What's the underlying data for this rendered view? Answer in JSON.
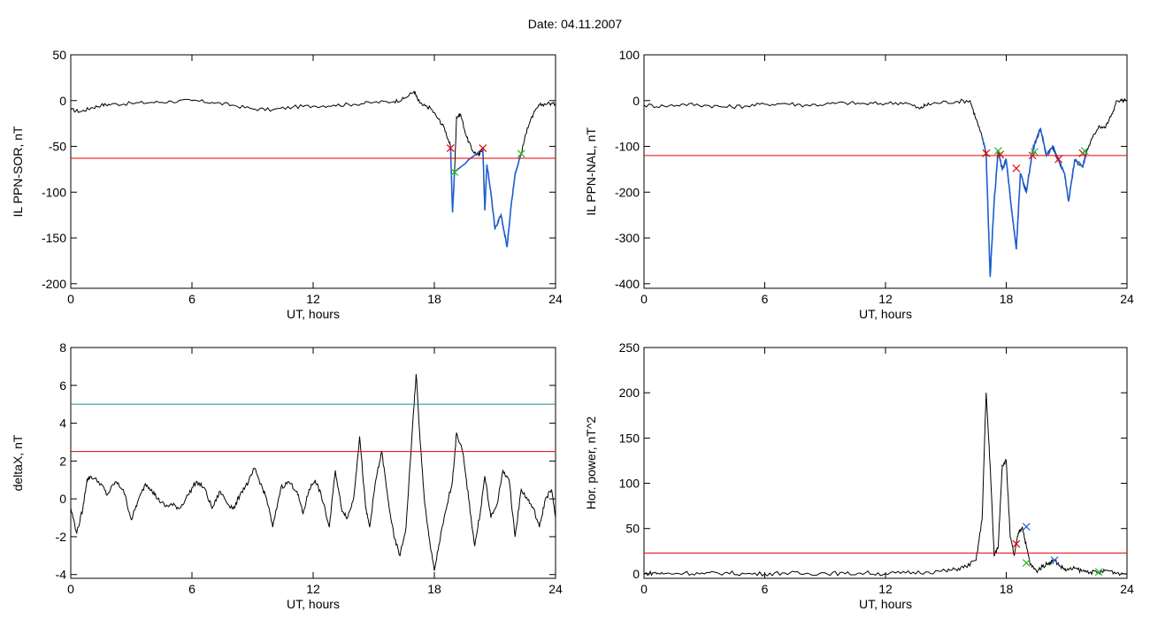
{
  "figure": {
    "title": "Date:  04.11.2007"
  },
  "colors": {
    "trace": "#000000",
    "highlight": "#1f5fd0",
    "threshold_red": "#e00000",
    "threshold_teal": "#1a8c8c",
    "marker_red": "#e00000",
    "marker_green": "#22bb22",
    "marker_blue": "#1f5fd0"
  },
  "chart_data": [
    {
      "id": "ppn-sor",
      "type": "line",
      "xlabel": "UT, hours",
      "ylabel": "IL PPN-SOR, nT",
      "xlim": [
        0,
        24
      ],
      "ylim": [
        -205,
        50
      ],
      "xticks": [
        0,
        6,
        12,
        18,
        24
      ],
      "yticks": [
        -200,
        -150,
        -100,
        -50,
        0,
        50
      ],
      "series": [
        {
          "x": [
            0,
            0.5,
            1,
            1.5,
            2,
            3,
            4,
            5,
            6,
            7,
            8,
            9,
            10,
            11,
            12,
            13,
            14,
            15,
            16,
            16.5,
            17,
            17.2,
            17.4,
            17.8,
            18.2,
            18.5,
            18.8,
            18.9,
            19.0,
            19.1,
            19.3,
            19.6,
            19.9,
            20.2,
            20.4,
            20.5,
            20.6,
            20.8,
            21.0,
            21.3,
            21.6,
            21.8,
            22.0,
            22.3,
            22.6,
            22.9,
            23.2,
            23.6,
            24
          ],
          "values": [
            -10,
            -12,
            -8,
            -5,
            -4,
            -3,
            -2,
            -1,
            0,
            -2,
            -5,
            -9,
            -10,
            -7,
            -6,
            -5,
            -4,
            -2,
            -1,
            2,
            10,
            0,
            -5,
            -8,
            -20,
            -30,
            -50,
            -122,
            -78,
            -18,
            -15,
            -40,
            -55,
            -60,
            -52,
            -120,
            -70,
            -100,
            -140,
            -125,
            -160,
            -115,
            -80,
            -58,
            -30,
            -15,
            -5,
            -3,
            -4
          ]
        },
        {
          "x": [
            18.8,
            18.9,
            19.0,
            20.4,
            20.5,
            20.6,
            20.8,
            21.0,
            21.3,
            21.6,
            21.8,
            22.0,
            22.3
          ],
          "values": [
            -50,
            -122,
            -78,
            -52,
            -120,
            -70,
            -100,
            -140,
            -125,
            -160,
            -115,
            -80,
            -58
          ]
        }
      ],
      "thresholds": [
        -63
      ],
      "markers": [
        {
          "x": 18.8,
          "y": -52,
          "color": "red"
        },
        {
          "x": 20.4,
          "y": -52,
          "color": "red"
        },
        {
          "x": 19.0,
          "y": -78,
          "color": "green"
        },
        {
          "x": 22.3,
          "y": -58,
          "color": "green"
        }
      ]
    },
    {
      "id": "ppn-nal",
      "type": "line",
      "xlabel": "UT, hours",
      "ylabel": "IL PPN-NAL, nT",
      "xlim": [
        0,
        24
      ],
      "ylim": [
        -410,
        100
      ],
      "xticks": [
        0,
        6,
        12,
        18,
        24
      ],
      "yticks": [
        -400,
        -300,
        -200,
        -100,
        0,
        100
      ],
      "series": [
        {
          "x": [
            0,
            1,
            2,
            3,
            4,
            5,
            6,
            7,
            8,
            9,
            10,
            11,
            12,
            13,
            13.7,
            14.0,
            14.5,
            15.5,
            16.2,
            16.5,
            16.8,
            17.0,
            17.2,
            17.4,
            17.6,
            17.8,
            18.0,
            18.3,
            18.5,
            18.7,
            19.0,
            19.3,
            19.5,
            19.7,
            20.0,
            20.3,
            20.6,
            20.9,
            21.1,
            21.4,
            21.8,
            22.0,
            22.3,
            22.6,
            22.9,
            23.2,
            23.5,
            24
          ],
          "values": [
            -10,
            -12,
            -8,
            -10,
            -14,
            -12,
            -8,
            -6,
            -10,
            -8,
            -5,
            -7,
            -6,
            -4,
            -18,
            -10,
            -5,
            -2,
            0,
            -40,
            -80,
            -115,
            -385,
            -220,
            -110,
            -150,
            -130,
            -250,
            -325,
            -160,
            -200,
            -110,
            -85,
            -60,
            -120,
            -100,
            -130,
            -160,
            -220,
            -130,
            -145,
            -110,
            -80,
            -55,
            -60,
            -35,
            0,
            0
          ]
        },
        {
          "x": [
            16.8,
            17.0,
            17.2,
            17.4,
            17.6,
            17.8,
            18.0,
            18.3,
            18.5,
            18.7,
            19.0,
            19.3,
            19.5,
            19.7,
            20.0,
            20.3,
            20.6,
            20.9,
            21.1,
            21.4,
            21.8,
            22.0
          ],
          "values": [
            -80,
            -115,
            -385,
            -220,
            -110,
            -150,
            -130,
            -250,
            -325,
            -160,
            -200,
            -110,
            -85,
            -60,
            -120,
            -100,
            -130,
            -160,
            -220,
            -130,
            -145,
            -110
          ]
        }
      ],
      "thresholds": [
        -120
      ],
      "markers": [
        {
          "x": 17.0,
          "y": -115,
          "color": "red"
        },
        {
          "x": 17.7,
          "y": -118,
          "color": "red"
        },
        {
          "x": 18.5,
          "y": -148,
          "color": "red"
        },
        {
          "x": 19.3,
          "y": -120,
          "color": "red"
        },
        {
          "x": 20.6,
          "y": -128,
          "color": "red"
        },
        {
          "x": 21.8,
          "y": -115,
          "color": "red"
        },
        {
          "x": 17.6,
          "y": -110,
          "color": "green"
        },
        {
          "x": 19.4,
          "y": -112,
          "color": "green"
        },
        {
          "x": 21.9,
          "y": -110,
          "color": "green"
        }
      ]
    },
    {
      "id": "deltax",
      "type": "line",
      "xlabel": "UT, hours",
      "ylabel": "deltaX, nT",
      "xlim": [
        0,
        24
      ],
      "ylim": [
        -4.2,
        8
      ],
      "xticks": [
        0,
        6,
        12,
        18,
        24
      ],
      "yticks": [
        -4,
        -2,
        0,
        2,
        4,
        6,
        8
      ],
      "series": [
        {
          "x": [
            0,
            0.3,
            0.6,
            0.8,
            1.0,
            1.5,
            1.8,
            2.2,
            2.6,
            3.0,
            3.3,
            3.7,
            4.0,
            4.3,
            4.7,
            5.0,
            5.4,
            5.8,
            6.2,
            6.6,
            7.0,
            7.4,
            7.8,
            8.1,
            8.4,
            8.8,
            9.1,
            9.4,
            9.7,
            10.0,
            10.4,
            10.8,
            11.2,
            11.5,
            11.8,
            12.1,
            12.4,
            12.8,
            13.1,
            13.4,
            13.7,
            14.0,
            14.3,
            14.6,
            14.8,
            15.1,
            15.4,
            15.7,
            16.0,
            16.3,
            16.6,
            16.9,
            17.1,
            17.3,
            17.5,
            17.8,
            18.0,
            18.3,
            18.6,
            18.9,
            19.1,
            19.4,
            19.7,
            20.0,
            20.3,
            20.5,
            20.8,
            21.1,
            21.4,
            21.7,
            22.0,
            22.3,
            22.6,
            22.9,
            23.2,
            23.5,
            23.8,
            24
          ],
          "values": [
            -0.5,
            -1.8,
            -0.5,
            1.0,
            1.2,
            0.8,
            0.2,
            0.9,
            0.5,
            -1.1,
            -0.2,
            0.8,
            0.5,
            0.0,
            -0.4,
            -0.3,
            -0.5,
            0.2,
            0.9,
            0.6,
            -0.5,
            0.4,
            -0.3,
            -0.5,
            0.3,
            0.9,
            1.6,
            0.8,
            0.0,
            -1.5,
            0.6,
            0.9,
            0.4,
            -0.8,
            0.5,
            1.0,
            0.2,
            -1.5,
            1.5,
            -0.5,
            -1.0,
            0.0,
            3.3,
            -0.5,
            -1.5,
            1.0,
            2.5,
            0.0,
            -2.0,
            -3.0,
            -1.5,
            3.5,
            6.6,
            3.0,
            0.0,
            -2.5,
            -3.8,
            -2.0,
            -0.5,
            1.0,
            3.5,
            2.5,
            0.0,
            -2.5,
            -0.5,
            1.2,
            -1.0,
            -0.3,
            1.5,
            1.0,
            -2.0,
            0.5,
            0.0,
            -0.5,
            -1.5,
            0.0,
            0.5,
            -1.0
          ]
        }
      ],
      "thresholds": [
        5.0,
        2.5
      ],
      "markers": []
    },
    {
      "id": "hor-power",
      "type": "line",
      "xlabel": "UT, hours",
      "ylabel": "Hor. power, nT^2",
      "xlim": [
        0,
        24
      ],
      "ylim": [
        -5,
        250
      ],
      "xticks": [
        0,
        6,
        12,
        18,
        24
      ],
      "yticks": [
        0,
        50,
        100,
        150,
        200,
        250
      ],
      "series": [
        {
          "x": [
            0,
            0.5,
            1,
            2,
            3,
            4,
            5,
            6,
            7,
            8,
            9,
            10,
            11,
            12,
            13,
            14,
            15,
            15.5,
            16.0,
            16.5,
            16.8,
            17.0,
            17.2,
            17.4,
            17.6,
            17.8,
            18.0,
            18.2,
            18.4,
            18.6,
            18.8,
            19.0,
            19.2,
            19.5,
            19.8,
            20.1,
            20.4,
            20.7,
            21.0,
            21.4,
            21.8,
            22.2,
            22.6,
            23.0,
            23.5,
            24
          ],
          "values": [
            0,
            1,
            0,
            1,
            0,
            1,
            0,
            0,
            1,
            0,
            1,
            0,
            1,
            0,
            1,
            2,
            3,
            5,
            8,
            15,
            60,
            200,
            120,
            20,
            30,
            120,
            125,
            40,
            20,
            45,
            52,
            30,
            10,
            3,
            8,
            12,
            15,
            8,
            4,
            6,
            3,
            2,
            1,
            4,
            1,
            0
          ]
        }
      ],
      "thresholds": [
        23
      ],
      "markers": [
        {
          "x": 18.5,
          "y": 33,
          "color": "red"
        },
        {
          "x": 19.0,
          "y": 12,
          "color": "green"
        },
        {
          "x": 22.6,
          "y": 2,
          "color": "green"
        },
        {
          "x": 19.0,
          "y": 52,
          "color": "blue"
        },
        {
          "x": 20.4,
          "y": 15,
          "color": "blue"
        }
      ]
    }
  ]
}
